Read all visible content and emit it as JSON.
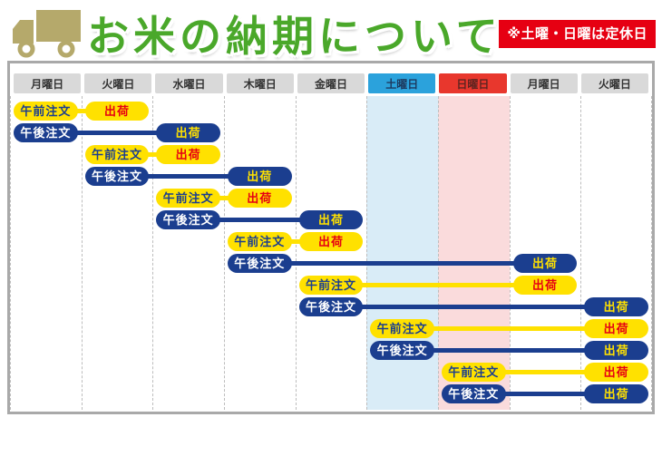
{
  "header": {
    "title": "お米の納期について",
    "title_color": "#4aa82a",
    "note": "※土曜・日曜は定休日",
    "note_bg": "#e60012",
    "truck_color": "#b5a96b"
  },
  "calendar": {
    "columns": [
      {
        "label": "月曜日",
        "type": "weekday"
      },
      {
        "label": "火曜日",
        "type": "weekday"
      },
      {
        "label": "水曜日",
        "type": "weekday"
      },
      {
        "label": "木曜日",
        "type": "weekday"
      },
      {
        "label": "金曜日",
        "type": "weekday"
      },
      {
        "label": "土曜日",
        "type": "saturday"
      },
      {
        "label": "日曜日",
        "type": "sunday"
      },
      {
        "label": "月曜日",
        "type": "weekday"
      },
      {
        "label": "火曜日",
        "type": "weekday"
      }
    ],
    "labels": {
      "morning_order": "午前注文",
      "afternoon_order": "午後注文",
      "ship": "出荷"
    },
    "rows": [
      {
        "kind": "morning",
        "order_col": 0,
        "ship_col": 1
      },
      {
        "kind": "afternoon",
        "order_col": 0,
        "ship_col": 2
      },
      {
        "kind": "morning",
        "order_col": 1,
        "ship_col": 2
      },
      {
        "kind": "afternoon",
        "order_col": 1,
        "ship_col": 3
      },
      {
        "kind": "morning",
        "order_col": 2,
        "ship_col": 3
      },
      {
        "kind": "afternoon",
        "order_col": 2,
        "ship_col": 4
      },
      {
        "kind": "morning",
        "order_col": 3,
        "ship_col": 4
      },
      {
        "kind": "afternoon",
        "order_col": 3,
        "ship_col": 7
      },
      {
        "kind": "morning",
        "order_col": 4,
        "ship_col": 7
      },
      {
        "kind": "afternoon",
        "order_col": 4,
        "ship_col": 8
      },
      {
        "kind": "morning",
        "order_col": 5,
        "ship_col": 8
      },
      {
        "kind": "afternoon",
        "order_col": 5,
        "ship_col": 8
      },
      {
        "kind": "morning",
        "order_col": 6,
        "ship_col": 8
      },
      {
        "kind": "afternoon",
        "order_col": 6,
        "ship_col": 8
      }
    ],
    "colors": {
      "navy": "#1b3e8f",
      "yellow": "#ffe100",
      "ship_red": "#e60012",
      "header_bg": "#d9d9d9",
      "saturday_header_bg": "#2ba2dc",
      "saturday_header_text": "#1d3a5f",
      "sunday_header_bg": "#e8372d",
      "sunday_header_text": "#5f2420",
      "saturday_tint": "#d9ecf7",
      "sunday_tint": "#fadbdc",
      "dash": "#bdbdbd",
      "border": "#a9a9a9"
    }
  }
}
